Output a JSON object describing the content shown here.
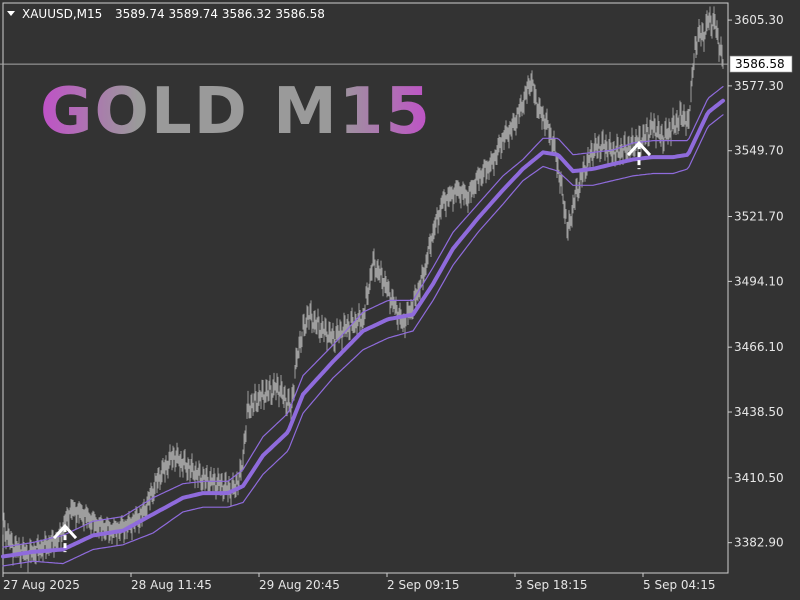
{
  "header": {
    "symbol": "XAUUSD,M15",
    "ohlc": "3589.74 3589.74 3586.32 3586.58"
  },
  "brand": {
    "text": "GOLD M15"
  },
  "current_price": {
    "label": "3586.58"
  },
  "colors": {
    "background": "#333333",
    "axis": "#cfcfcf",
    "price_line": "#9e9e9e",
    "band": "#8f6bdc",
    "arrow": "#ffffff",
    "brand_gradient": [
      "#c050c8",
      "#9a9a9a",
      "#9a9a9a",
      "#c050c8"
    ]
  },
  "chart_data": {
    "type": "line",
    "title": "",
    "xlabel": "",
    "ylabel": "",
    "ylim": [
      3369.99,
      3612.57
    ],
    "y_ticks": [
      "3605.30",
      "3577.30",
      "3549.70",
      "3521.70",
      "3494.10",
      "3466.10",
      "3438.50",
      "3410.50",
      "3382.90"
    ],
    "y_tick_values": [
      3605.3,
      3577.3,
      3549.7,
      3521.7,
      3494.1,
      3466.1,
      3438.5,
      3410.5,
      3382.9
    ],
    "x_ticks": [
      "27 Aug 2025",
      "28 Aug 11:45",
      "29 Aug 20:45",
      "2 Sep 09:15",
      "3 Sep 18:15",
      "5 Sep 04:15"
    ],
    "x_tick_bars": [
      0,
      128,
      256,
      384,
      512,
      640
    ],
    "bar_count": 720,
    "bar_step": 1,
    "series": [
      {
        "role": "price",
        "points": [
          [
            0,
            3390
          ],
          [
            10,
            3381
          ],
          [
            25,
            3378
          ],
          [
            40,
            3381
          ],
          [
            55,
            3384
          ],
          [
            68,
            3397
          ],
          [
            80,
            3395
          ],
          [
            95,
            3390
          ],
          [
            110,
            3388
          ],
          [
            125,
            3390
          ],
          [
            140,
            3395
          ],
          [
            155,
            3410
          ],
          [
            170,
            3420
          ],
          [
            185,
            3415
          ],
          [
            200,
            3410
          ],
          [
            215,
            3408
          ],
          [
            230,
            3405
          ],
          [
            238,
            3412
          ],
          [
            245,
            3440
          ],
          [
            260,
            3446
          ],
          [
            275,
            3449
          ],
          [
            288,
            3440
          ],
          [
            295,
            3465
          ],
          [
            305,
            3480
          ],
          [
            315,
            3475
          ],
          [
            330,
            3470
          ],
          [
            345,
            3475
          ],
          [
            360,
            3478
          ],
          [
            370,
            3502
          ],
          [
            380,
            3495
          ],
          [
            390,
            3485
          ],
          [
            400,
            3476
          ],
          [
            410,
            3484
          ],
          [
            420,
            3496
          ],
          [
            430,
            3515
          ],
          [
            440,
            3528
          ],
          [
            455,
            3533
          ],
          [
            465,
            3530
          ],
          [
            475,
            3538
          ],
          [
            490,
            3545
          ],
          [
            500,
            3555
          ],
          [
            510,
            3560
          ],
          [
            520,
            3570
          ],
          [
            528,
            3580
          ],
          [
            535,
            3568
          ],
          [
            545,
            3560
          ],
          [
            552,
            3550
          ],
          [
            560,
            3530
          ],
          [
            565,
            3515
          ],
          [
            572,
            3530
          ],
          [
            580,
            3540
          ],
          [
            590,
            3550
          ],
          [
            600,
            3552
          ],
          [
            610,
            3549
          ],
          [
            620,
            3550
          ],
          [
            630,
            3552
          ],
          [
            640,
            3555
          ],
          [
            650,
            3560
          ],
          [
            660,
            3555
          ],
          [
            670,
            3560
          ],
          [
            680,
            3565
          ],
          [
            685,
            3560
          ],
          [
            690,
            3585
          ],
          [
            695,
            3600
          ],
          [
            700,
            3598
          ],
          [
            705,
            3605
          ],
          [
            712,
            3604
          ],
          [
            720,
            3587
          ]
        ]
      },
      {
        "role": "band-mid",
        "points": [
          [
            0,
            3377
          ],
          [
            30,
            3379
          ],
          [
            60,
            3380
          ],
          [
            90,
            3386
          ],
          [
            120,
            3388
          ],
          [
            150,
            3395
          ],
          [
            180,
            3402
          ],
          [
            200,
            3404
          ],
          [
            225,
            3404
          ],
          [
            240,
            3407
          ],
          [
            260,
            3420
          ],
          [
            285,
            3430
          ],
          [
            300,
            3446
          ],
          [
            330,
            3460
          ],
          [
            360,
            3473
          ],
          [
            385,
            3478
          ],
          [
            410,
            3480
          ],
          [
            430,
            3493
          ],
          [
            450,
            3508
          ],
          [
            475,
            3521
          ],
          [
            500,
            3533
          ],
          [
            520,
            3542
          ],
          [
            540,
            3549
          ],
          [
            555,
            3548
          ],
          [
            570,
            3541
          ],
          [
            590,
            3542
          ],
          [
            610,
            3544
          ],
          [
            630,
            3546
          ],
          [
            650,
            3547
          ],
          [
            670,
            3547
          ],
          [
            685,
            3548
          ],
          [
            695,
            3557
          ],
          [
            705,
            3566
          ],
          [
            720,
            3571
          ]
        ]
      },
      {
        "role": "band-upper",
        "points": [
          [
            0,
            3381
          ],
          [
            30,
            3383
          ],
          [
            60,
            3386
          ],
          [
            90,
            3392
          ],
          [
            120,
            3394
          ],
          [
            150,
            3402
          ],
          [
            180,
            3408
          ],
          [
            200,
            3409
          ],
          [
            225,
            3409
          ],
          [
            240,
            3414
          ],
          [
            260,
            3428
          ],
          [
            285,
            3438
          ],
          [
            300,
            3454
          ],
          [
            330,
            3467
          ],
          [
            360,
            3481
          ],
          [
            385,
            3486
          ],
          [
            410,
            3486
          ],
          [
            430,
            3500
          ],
          [
            450,
            3515
          ],
          [
            475,
            3527
          ],
          [
            500,
            3539
          ],
          [
            520,
            3546
          ],
          [
            540,
            3555
          ],
          [
            555,
            3555
          ],
          [
            570,
            3548
          ],
          [
            590,
            3549
          ],
          [
            610,
            3550
          ],
          [
            630,
            3553
          ],
          [
            650,
            3554
          ],
          [
            670,
            3554
          ],
          [
            685,
            3554
          ],
          [
            695,
            3563
          ],
          [
            705,
            3572
          ],
          [
            720,
            3577
          ]
        ]
      },
      {
        "role": "band-lower",
        "points": [
          [
            0,
            3373
          ],
          [
            30,
            3375
          ],
          [
            60,
            3374
          ],
          [
            90,
            3380
          ],
          [
            120,
            3382
          ],
          [
            150,
            3387
          ],
          [
            180,
            3396
          ],
          [
            200,
            3398
          ],
          [
            225,
            3398
          ],
          [
            240,
            3400
          ],
          [
            260,
            3412
          ],
          [
            285,
            3422
          ],
          [
            300,
            3438
          ],
          [
            330,
            3453
          ],
          [
            360,
            3465
          ],
          [
            385,
            3470
          ],
          [
            410,
            3473
          ],
          [
            430,
            3486
          ],
          [
            450,
            3501
          ],
          [
            475,
            3515
          ],
          [
            500,
            3527
          ],
          [
            520,
            3537
          ],
          [
            540,
            3543
          ],
          [
            555,
            3541
          ],
          [
            570,
            3535
          ],
          [
            590,
            3535
          ],
          [
            610,
            3537
          ],
          [
            630,
            3539
          ],
          [
            650,
            3540
          ],
          [
            670,
            3540
          ],
          [
            685,
            3542
          ],
          [
            695,
            3551
          ],
          [
            705,
            3560
          ],
          [
            720,
            3565
          ]
        ]
      }
    ],
    "signals": [
      {
        "type": "buy-arrow",
        "bar": 62,
        "price": 3384
      },
      {
        "type": "buy-arrow",
        "bar": 636,
        "price": 3547
      }
    ],
    "current_price": 3586.58
  }
}
